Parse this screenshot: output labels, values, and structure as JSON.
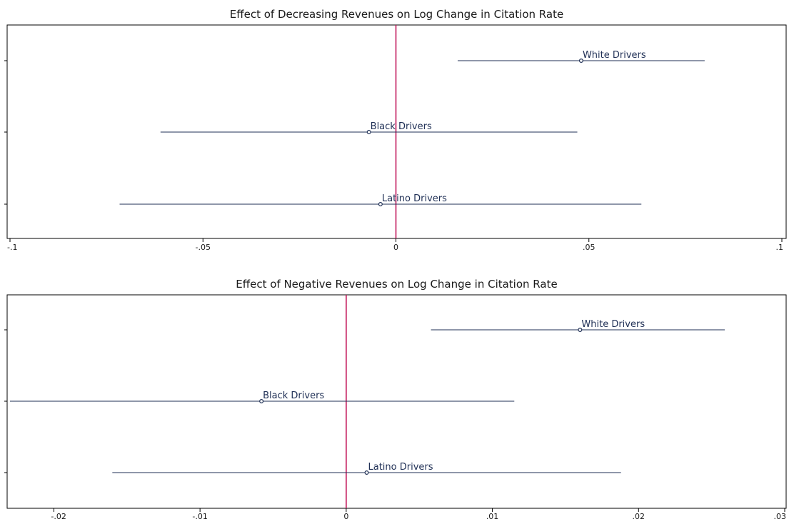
{
  "chart_data": [
    {
      "type": "scatter",
      "title": "Effect of Decreasing Revenues on Log Change in Citation Rate",
      "xlabel": "",
      "ylabel": "",
      "xlim": [
        -0.1,
        0.1
      ],
      "x_ticks": [
        -0.1,
        -0.05,
        0,
        0.05,
        0.1
      ],
      "x_tick_labels": [
        "-.1",
        "-.05",
        "0",
        ".05",
        ".1"
      ],
      "reference_line": 0,
      "reference_line_color": "#c2185b",
      "line_color": "#1f2f55",
      "grid": false,
      "series": [
        {
          "name": "White Drivers",
          "estimate": 0.048,
          "ci": [
            0.016,
            0.08
          ]
        },
        {
          "name": "Black Drivers",
          "estimate": -0.007,
          "ci": [
            -0.061,
            0.047
          ]
        },
        {
          "name": "Latino Drivers",
          "estimate": -0.004,
          "ci": [
            -0.0716,
            0.0636
          ]
        }
      ]
    },
    {
      "type": "scatter",
      "title": "Effect of Negative Revenues on Log Change in Citation Rate",
      "xlabel": "",
      "ylabel": "",
      "xlim": [
        -0.023,
        0.03
      ],
      "x_ticks": [
        -0.02,
        -0.01,
        0,
        0.01,
        0.02,
        0.03
      ],
      "x_tick_labels": [
        "-.02",
        "-.01",
        "0",
        ".01",
        ".02",
        ".03"
      ],
      "reference_line": 0,
      "reference_line_color": "#c2185b",
      "line_color": "#1f2f55",
      "grid": false,
      "series": [
        {
          "name": "White Drivers",
          "estimate": 0.016,
          "ci": [
            0.0058,
            0.0259
          ]
        },
        {
          "name": "Black Drivers",
          "estimate": -0.0058,
          "ci": [
            -0.023,
            0.0115
          ]
        },
        {
          "name": "Latino Drivers",
          "estimate": 0.0014,
          "ci": [
            -0.016,
            0.0188
          ]
        }
      ]
    }
  ]
}
